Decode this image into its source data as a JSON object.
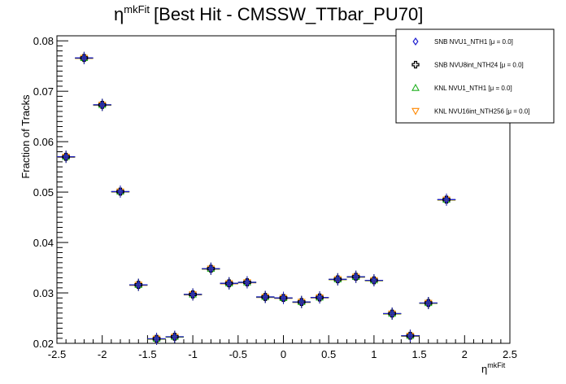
{
  "chart_data": {
    "type": "scatter",
    "title": {
      "symbol": "η",
      "superscript": "mkFit",
      "text": "[Best Hit - CMSSW_TTbar_PU70]"
    },
    "xlabel": {
      "symbol": "η",
      "superscript": "mkFit"
    },
    "ylabel": "Fraction of Tracks",
    "xlim": [
      -2.5,
      2.5
    ],
    "ylim": [
      0.02,
      0.081
    ],
    "x_ticks": [
      -2.5,
      -2,
      -1.5,
      -1,
      -0.5,
      0,
      0.5,
      1,
      1.5,
      2,
      2.5
    ],
    "x_tick_labels": [
      "-2.5",
      "-2",
      "-1.5",
      "-1",
      "-0.5",
      "0",
      "0.5",
      "1",
      "1.5",
      "2",
      "2.5"
    ],
    "y_ticks": [
      0.02,
      0.03,
      0.04,
      0.05,
      0.06,
      0.07,
      0.08
    ],
    "y_tick_labels": [
      "0.02",
      "0.03",
      "0.04",
      "0.05",
      "0.06",
      "0.07",
      "0.08"
    ],
    "bin_half_width": 0.1,
    "x": [
      -2.4,
      -2.2,
      -2.0,
      -1.8,
      -1.6,
      -1.4,
      -1.2,
      -1.0,
      -0.8,
      -0.6,
      -0.4,
      -0.2,
      0.0,
      0.2,
      0.4,
      0.6,
      0.8,
      1.0,
      1.2,
      1.4,
      1.6,
      1.8
    ],
    "values": [
      0.057,
      0.0766,
      0.0673,
      0.0501,
      0.0316,
      0.0209,
      0.0213,
      0.0297,
      0.0348,
      0.0319,
      0.0321,
      0.0292,
      0.029,
      0.0282,
      0.0291,
      0.0327,
      0.0332,
      0.0325,
      0.0259,
      0.0215,
      0.028,
      0.0485
    ],
    "y_error": 0.0012,
    "legend_position": "top-right",
    "series": [
      {
        "name": "SNB NVU1_NTH1 [μ = 0.0]",
        "marker": "diamond",
        "color": "#1f1fd0"
      },
      {
        "name": "SNB NVU8int_NTH24 [μ = 0.0]",
        "marker": "cross",
        "color": "#000000"
      },
      {
        "name": "KNL NVU1_NTH1 [μ = 0.0]",
        "marker": "triangle-up",
        "color": "#1fb01f"
      },
      {
        "name": "KNL NVU16int_NTH256 [μ = 0.0]",
        "marker": "triangle-down",
        "color": "#ff8800"
      }
    ]
  }
}
